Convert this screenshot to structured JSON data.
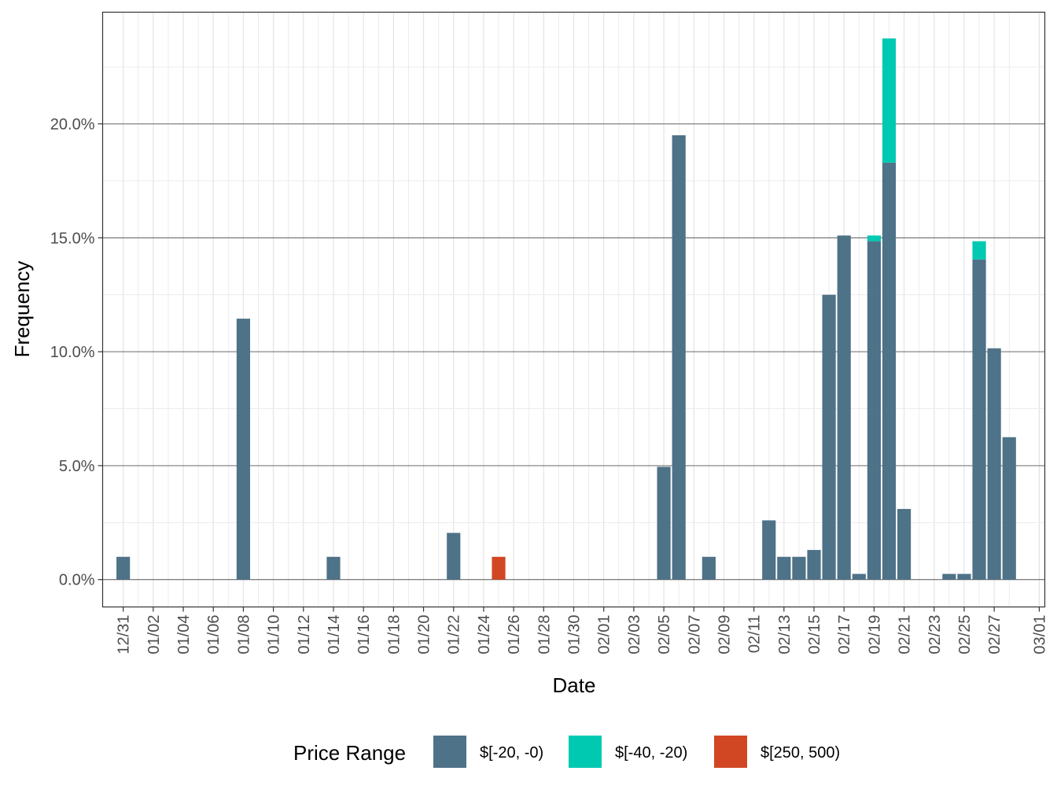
{
  "chart_data": {
    "type": "bar",
    "stacked": true,
    "xlabel": "Date",
    "ylabel": "Frequency",
    "x_tick_labels": [
      "12/31",
      "01/02",
      "01/04",
      "01/06",
      "01/08",
      "01/10",
      "01/12",
      "01/14",
      "01/16",
      "01/18",
      "01/20",
      "01/22",
      "01/24",
      "01/26",
      "01/28",
      "01/30",
      "02/01",
      "02/03",
      "02/05",
      "02/07",
      "02/09",
      "02/11",
      "02/13",
      "02/15",
      "02/17",
      "02/19",
      "02/21",
      "02/23",
      "02/25",
      "02/27",
      "03/01"
    ],
    "y_tick_labels": [
      "0.0%",
      "5.0%",
      "10.0%",
      "15.0%",
      "20.0%"
    ],
    "y_ticks": [
      0,
      5,
      10,
      15,
      20
    ],
    "ylim": [
      -1.2,
      24.9
    ],
    "x_domain": [
      "12/30",
      "03/01"
    ],
    "grid": true,
    "legend": {
      "title": "Price Range",
      "position": "bottom",
      "entries": [
        "$[-20, -0)",
        "$[-40, -20)",
        "$[250, 500)"
      ]
    },
    "series": [
      {
        "name": "$[-20, -0)",
        "color": "#4e7287",
        "points": [
          {
            "x": "12/31",
            "y": 1.0
          },
          {
            "x": "01/08",
            "y": 11.45
          },
          {
            "x": "01/14",
            "y": 1.0
          },
          {
            "x": "01/22",
            "y": 2.05
          },
          {
            "x": "02/05",
            "y": 4.95
          },
          {
            "x": "02/06",
            "y": 19.5
          },
          {
            "x": "02/08",
            "y": 1.0
          },
          {
            "x": "02/12",
            "y": 2.6
          },
          {
            "x": "02/13",
            "y": 1.0
          },
          {
            "x": "02/14",
            "y": 1.0
          },
          {
            "x": "02/15",
            "y": 1.3
          },
          {
            "x": "02/16",
            "y": 12.5
          },
          {
            "x": "02/17",
            "y": 15.1
          },
          {
            "x": "02/18",
            "y": 0.25
          },
          {
            "x": "02/19",
            "y": 14.85
          },
          {
            "x": "02/20",
            "y": 18.3
          },
          {
            "x": "02/21",
            "y": 3.1
          },
          {
            "x": "02/24",
            "y": 0.25
          },
          {
            "x": "02/25",
            "y": 0.25
          },
          {
            "x": "02/26",
            "y": 14.05
          },
          {
            "x": "02/27",
            "y": 10.15
          },
          {
            "x": "02/28",
            "y": 6.25
          }
        ]
      },
      {
        "name": "$[-40, -20)",
        "color": "#00c9b1",
        "points": [
          {
            "x": "02/19",
            "y": 0.25
          },
          {
            "x": "02/20",
            "y": 5.45
          },
          {
            "x": "02/26",
            "y": 0.8
          }
        ]
      },
      {
        "name": "$[250, 500)",
        "color": "#d24723",
        "points": [
          {
            "x": "01/25",
            "y": 1.0
          }
        ]
      }
    ]
  }
}
